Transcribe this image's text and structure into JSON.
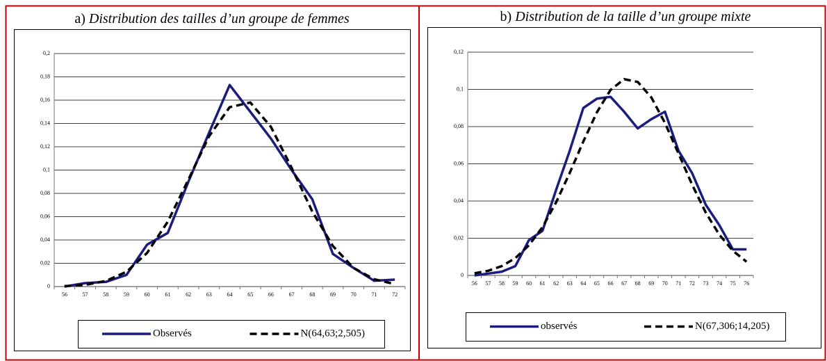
{
  "chart_data": [
    {
      "type": "line",
      "panel": "a)",
      "title": "Distribution des tailles d’un groupe de femmes",
      "categories": [
        "56",
        "57",
        "58",
        "59",
        "60",
        "61",
        "62",
        "63",
        "64",
        "65",
        "66",
        "67",
        "68",
        "69",
        "70",
        "71",
        "72"
      ],
      "series": [
        {
          "name": "Observés",
          "color": "#1c1c7e",
          "line_style": "solid",
          "values": [
            0,
            0.003,
            0.004,
            0.01,
            0.036,
            0.046,
            0.09,
            0.132,
            0.173,
            0.15,
            0.127,
            0.1,
            0.075,
            0.028,
            0.016,
            0.005,
            0.006
          ]
        },
        {
          "name": "N(64,63;2,505)",
          "color": "#000000",
          "line_style": "dashed",
          "values": [
            0.0004,
            0.0015,
            0.0048,
            0.0127,
            0.0289,
            0.0557,
            0.0918,
            0.129,
            0.154,
            0.158,
            0.137,
            0.102,
            0.0645,
            0.0348,
            0.016,
            0.0063,
            0.0021
          ]
        }
      ],
      "ylim": [
        0,
        0.2
      ],
      "yticks": [
        0,
        {
          "value": 0.02,
          "label": "0,02"
        },
        {
          "value": 0.04,
          "label": "0,04"
        },
        {
          "value": 0.06,
          "label": "0,06"
        },
        {
          "value": 0.08,
          "label": "0,08"
        },
        {
          "value": 0.1,
          "label": "0,1"
        },
        {
          "value": 0.12,
          "label": "0,12"
        },
        {
          "value": 0.14,
          "label": "0,14"
        },
        {
          "value": 0.16,
          "label": "0,16"
        },
        {
          "value": 0.18,
          "label": "0,18"
        },
        {
          "value": 0.2,
          "label": "0,2"
        }
      ],
      "grid": true,
      "legend": "bottom"
    },
    {
      "type": "line",
      "panel": "b)",
      "title": "Distribution de la taille d’un groupe mixte",
      "categories": [
        "56",
        "57",
        "58",
        "59",
        "60",
        "61",
        "62",
        "63",
        "64",
        "65",
        "66",
        "67",
        "68",
        "69",
        "70",
        "71",
        "72",
        "73",
        "74",
        "75",
        "76"
      ],
      "series": [
        {
          "name": "observés",
          "color": "#1c1c7e",
          "line_style": "solid",
          "values": [
            0,
            0.001,
            0.002,
            0.005,
            0.019,
            0.024,
            0.046,
            0.067,
            0.09,
            0.095,
            0.096,
            0.088,
            0.079,
            0.084,
            0.088,
            0.067,
            0.055,
            0.038,
            0.027,
            0.014,
            0.014
          ]
        },
        {
          "name": "N(67,306;14,205)",
          "color": "#000000",
          "line_style": "dashed",
          "values": [
            0.0012,
            0.0025,
            0.005,
            0.0093,
            0.0162,
            0.026,
            0.0393,
            0.0551,
            0.072,
            0.0877,
            0.0997,
            0.1055,
            0.104,
            0.0957,
            0.082,
            0.0655,
            0.0488,
            0.0338,
            0.0219,
            0.0132,
            0.0074
          ]
        }
      ],
      "ylim": [
        0,
        0.12
      ],
      "yticks": [
        0,
        {
          "value": 0.02,
          "label": "0,02"
        },
        {
          "value": 0.04,
          "label": "0,04"
        },
        {
          "value": 0.06,
          "label": "0,06"
        },
        {
          "value": 0.08,
          "label": "0,08"
        },
        {
          "value": 0.1,
          "label": "0,1"
        },
        {
          "value": 0.12,
          "label": "0,12"
        }
      ],
      "grid": true,
      "legend": "bottom"
    }
  ]
}
